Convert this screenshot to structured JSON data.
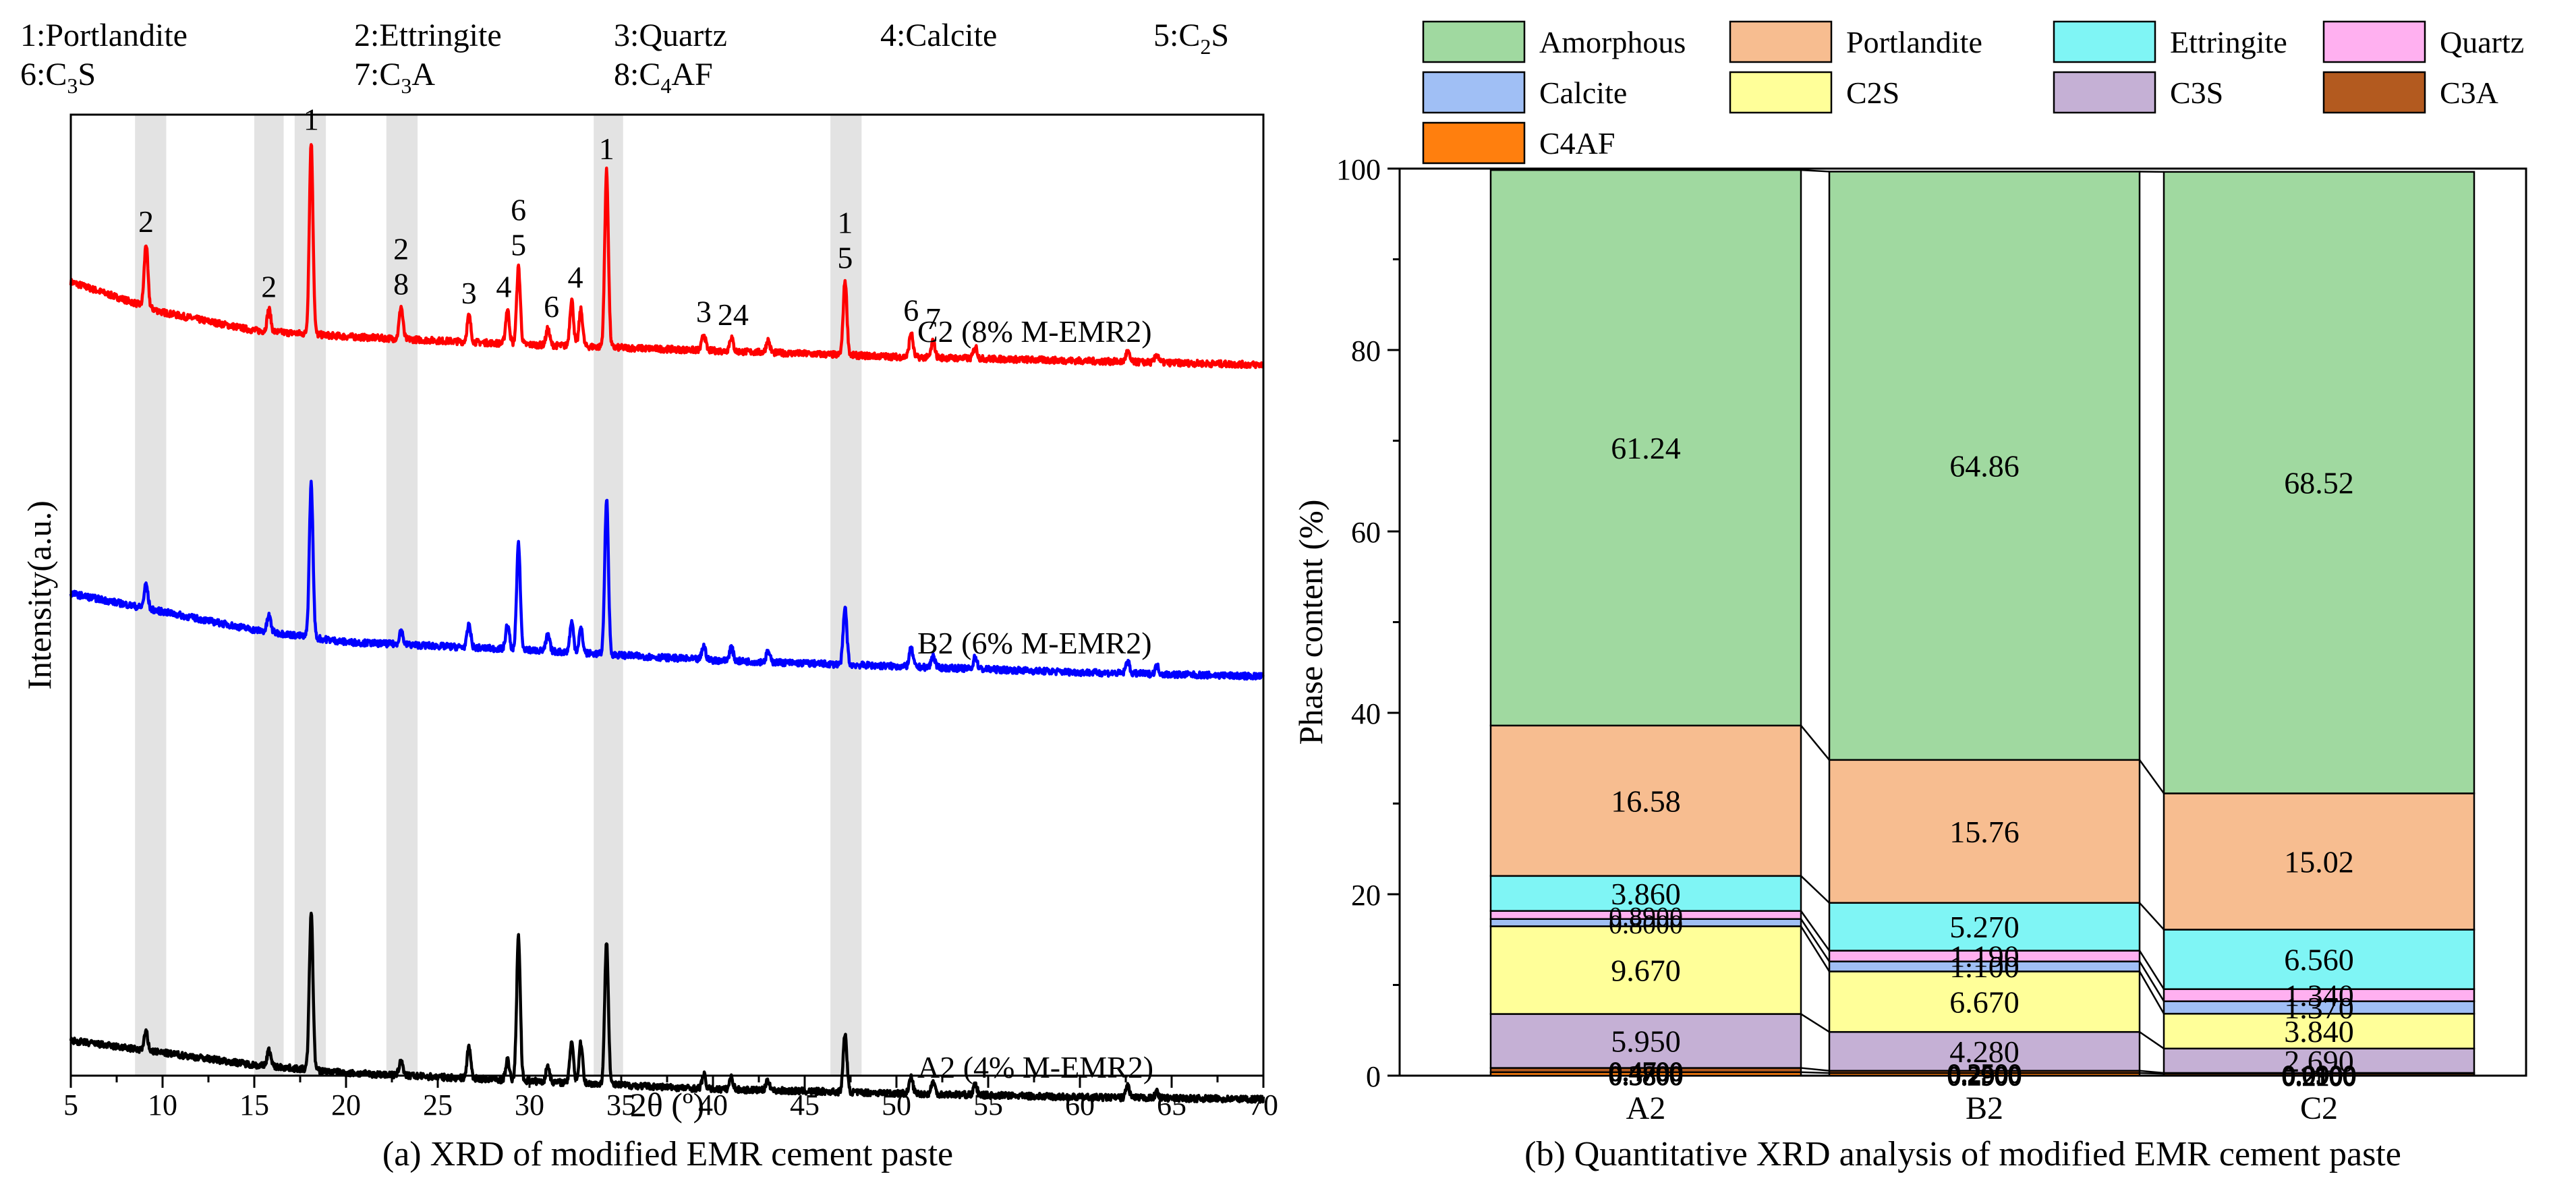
{
  "chart_data": [
    {
      "type": "line",
      "panel_caption": "(a) XRD of modified EMR cement paste",
      "xlabel": "2θ (º)",
      "ylabel": "Intensity(a.u.)",
      "xlim": [
        5,
        70
      ],
      "xticks": [
        "5",
        "10",
        "15",
        "20",
        "25",
        "30",
        "35",
        "40",
        "45",
        "50",
        "55",
        "60",
        "65",
        "70"
      ],
      "phase_legend": [
        {
          "text": "1:Portlandite"
        },
        {
          "text": "2:Ettringite"
        },
        {
          "text": "3:Quartz"
        },
        {
          "text": "4:Calcite"
        },
        {
          "text": "5:C",
          "sub": "2",
          "tail": "S"
        },
        {
          "text": "6:C",
          "sub": "3",
          "tail": "S"
        },
        {
          "text": "7:C",
          "sub": "3",
          "tail": "A"
        },
        {
          "text": "8:C",
          "sub": "4",
          "tail": "AF"
        }
      ],
      "shaded_bands_2theta": [
        [
          8.5,
          10.2
        ],
        [
          15.0,
          16.6
        ],
        [
          17.2,
          18.9
        ],
        [
          22.2,
          23.9
        ],
        [
          33.5,
          35.1
        ],
        [
          46.4,
          48.1
        ]
      ],
      "peaks_2theta": [
        9.1,
        15.8,
        18.1,
        23.0,
        26.7,
        28.8,
        29.4,
        31.0,
        32.3,
        32.8,
        34.2,
        39.5,
        41.0,
        43.0,
        47.2,
        50.8,
        52.0,
        54.3,
        62.6,
        64.2
      ],
      "series": [
        {
          "name": "C2 (8% M-EMR2)",
          "color": "#ff0000",
          "baseline": [
            [
              5,
              79
            ],
            [
              10,
              64
            ],
            [
              15,
              55
            ],
            [
              20,
              52
            ],
            [
              30,
              48
            ],
            [
              40,
              45
            ],
            [
              50,
              42
            ],
            [
              60,
              40
            ],
            [
              70,
              38
            ]
          ],
          "peak_heights": [
            31,
            11,
            95,
            16,
            13,
            17,
            38,
            8,
            23,
            18,
            87,
            8,
            7,
            6,
            37,
            12,
            8,
            6,
            5,
            4
          ]
        },
        {
          "name": "B2 (6% M-EMR2)",
          "color": "#0000ff",
          "baseline": [
            [
              5,
              65
            ],
            [
              10,
              56
            ],
            [
              15,
              47
            ],
            [
              20,
              41
            ],
            [
              30,
              37
            ],
            [
              40,
              32
            ],
            [
              50,
              29
            ],
            [
              60,
              26
            ],
            [
              70,
              24
            ]
          ],
          "peak_heights": [
            12,
            8,
            76,
            7,
            11,
            12,
            52,
            8,
            15,
            12,
            77,
            7,
            7,
            5,
            28,
            9,
            6,
            6,
            6,
            4
          ]
        },
        {
          "name": "A2 (4% M-EMR2)",
          "color": "#000000",
          "baseline": [
            [
              5,
              34
            ],
            [
              10,
              28
            ],
            [
              15,
              22
            ],
            [
              20,
              18
            ],
            [
              30,
              14
            ],
            [
              40,
              10
            ],
            [
              50,
              8
            ],
            [
              60,
              6
            ],
            [
              70,
              5
            ]
          ],
          "peak_heights": [
            9,
            8,
            78,
            8,
            16,
            10,
            71,
            8,
            21,
            20,
            71,
            7,
            6,
            5,
            29,
            8,
            6,
            5,
            6,
            3
          ]
        }
      ],
      "annotations": [
        {
          "label": "2",
          "x": 9.1,
          "series": 0
        },
        {
          "label": "2",
          "x": 15.8,
          "series": 0
        },
        {
          "label": "1",
          "x": 18.1,
          "series": 0
        },
        {
          "label": "2",
          "x": 23.0,
          "series": 0,
          "line": 1
        },
        {
          "label": "8",
          "x": 23.0,
          "series": 0
        },
        {
          "label": "3",
          "x": 26.7,
          "series": 0
        },
        {
          "label": "4",
          "x": 28.6,
          "series": 0
        },
        {
          "label": "6",
          "x": 29.4,
          "series": 0,
          "line": 1
        },
        {
          "label": "5",
          "x": 29.4,
          "series": 0
        },
        {
          "label": "6",
          "x": 31.2,
          "series": 0
        },
        {
          "label": "4",
          "x": 32.5,
          "series": 0
        },
        {
          "label": "1",
          "x": 34.2,
          "series": 0
        },
        {
          "label": "3",
          "x": 39.5,
          "series": 0
        },
        {
          "label": "24",
          "x": 41.1,
          "series": 0
        },
        {
          "label": "1",
          "x": 47.2,
          "series": 0,
          "line": 1
        },
        {
          "label": "5",
          "x": 47.2,
          "series": 0
        },
        {
          "label": "6",
          "x": 50.8,
          "series": 0
        },
        {
          "label": "7",
          "x": 52.0,
          "series": 0
        }
      ]
    },
    {
      "type": "bar",
      "stacked": true,
      "panel_caption": "(b) Quantitative XRD analysis of modified EMR cement paste",
      "xlabel": "",
      "ylabel": "Phase content (%)",
      "ylim": [
        0,
        100
      ],
      "yticks": [
        "0",
        "20",
        "40",
        "60",
        "80",
        "100"
      ],
      "categories": [
        "A2",
        "B2",
        "C2"
      ],
      "series": [
        {
          "name": "C4AF",
          "color": "#ff7f0e",
          "values": [
            0.38,
            0.29,
            0.21
          ],
          "labels": [
            "0.3800",
            "0.2900",
            "0.2100"
          ]
        },
        {
          "name": "C3A",
          "color": "#b35a1f",
          "values": [
            0.47,
            0.25,
            0.09
          ],
          "labels": [
            "0.4700",
            "0.2500",
            "0.0900"
          ]
        },
        {
          "name": "C3S",
          "color": "#c5b0d5",
          "values": [
            5.95,
            4.28,
            2.69
          ],
          "labels": [
            "5.950",
            "4.280",
            "2.690"
          ]
        },
        {
          "name": "C2S",
          "color": "#ffff99",
          "values": [
            9.67,
            6.67,
            3.84
          ],
          "labels": [
            "9.670",
            "6.670",
            "3.840"
          ]
        },
        {
          "name": "Calcite",
          "color": "#a0bff5",
          "values": [
            0.8,
            1.1,
            1.37
          ],
          "labels": [
            "0.8000",
            "1.100",
            "1.370"
          ]
        },
        {
          "name": "Quartz",
          "color": "#ffb0f0",
          "values": [
            0.89,
            1.19,
            1.34
          ],
          "labels": [
            "0.8900",
            "1.190",
            "1.340"
          ]
        },
        {
          "name": "Ettringite",
          "color": "#7ff5f5",
          "values": [
            3.86,
            5.27,
            6.56
          ],
          "labels": [
            "3.860",
            "5.270",
            "6.560"
          ]
        },
        {
          "name": "Portlandite",
          "color": "#f7bd90",
          "values": [
            16.58,
            15.76,
            15.02
          ],
          "labels": [
            "16.58",
            "15.76",
            "15.02"
          ]
        },
        {
          "name": "Amorphous",
          "color": "#a0d9a0",
          "values": [
            61.24,
            64.86,
            68.52
          ],
          "labels": [
            "61.24",
            "64.86",
            "68.52"
          ]
        }
      ],
      "legend_order": [
        "Amorphous",
        "Portlandite",
        "Ettringite",
        "Quartz",
        "Calcite",
        "C2S",
        "C3S",
        "C3A",
        "C4AF"
      ]
    }
  ]
}
